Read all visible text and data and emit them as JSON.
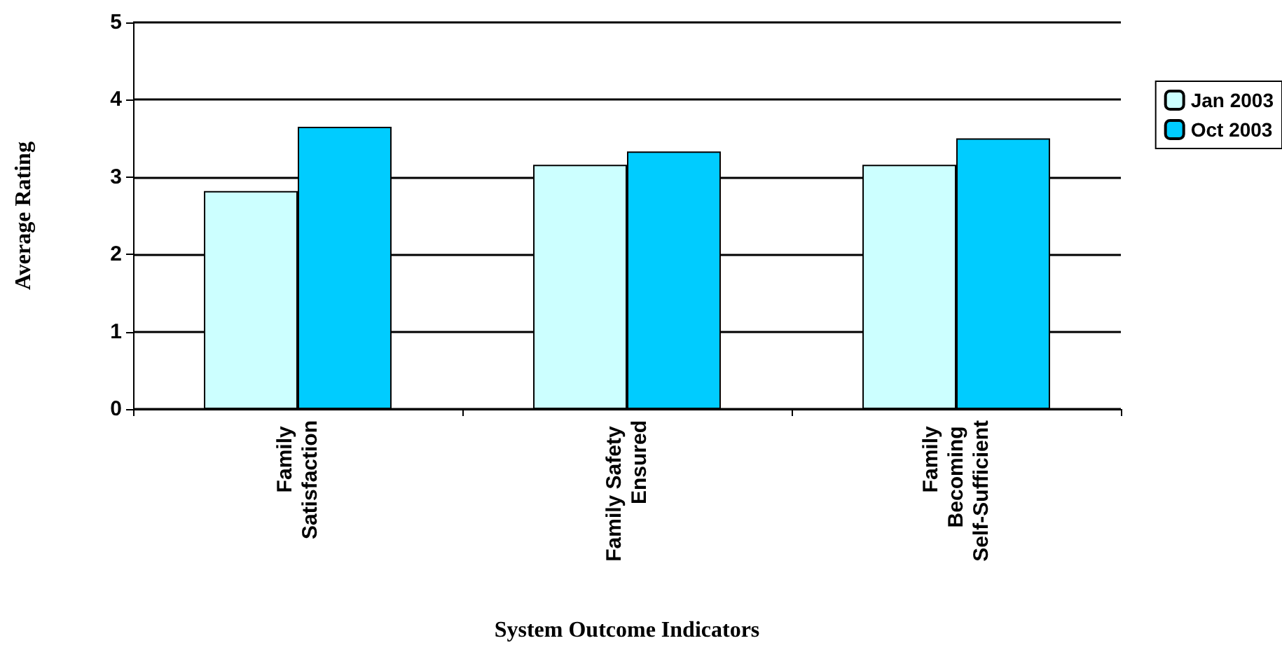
{
  "chart_data": {
    "type": "bar",
    "xlabel": "System Outcome Indicators",
    "ylabel": "Average Rating",
    "categories": [
      "Family Satisfaction",
      "Family Safety Ensured",
      "Family Becoming Self-Sufficient"
    ],
    "series": [
      {
        "name": "Jan 2003",
        "color": "#ccffff",
        "values": [
          2.82,
          3.16,
          3.16
        ]
      },
      {
        "name": "Oct 2003",
        "color": "#00ccff",
        "values": [
          3.65,
          3.33,
          3.5
        ]
      }
    ],
    "ylim": [
      0,
      5
    ],
    "yticks": [
      0,
      1,
      2,
      3,
      4,
      5
    ],
    "grid": "y",
    "legend": "right"
  }
}
